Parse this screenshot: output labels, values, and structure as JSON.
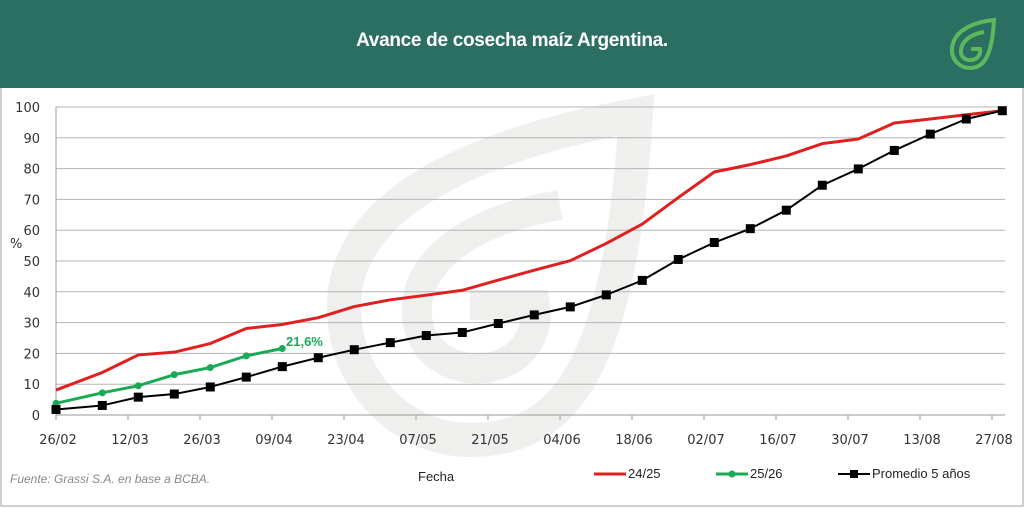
{
  "header": {
    "title": "Avance de cosecha maíz Argentina."
  },
  "source": "Fuente: Grassi S.A. en base a BCBA.",
  "chart_data": {
    "type": "line",
    "title": "Avance de cosecha maíz Argentina.",
    "xlabel": "Fecha",
    "ylabel": "%",
    "ylim": [
      0,
      100
    ],
    "yticks": [
      0,
      10,
      20,
      30,
      40,
      50,
      60,
      70,
      80,
      90,
      100
    ],
    "xtick_days": [
      0,
      14,
      28,
      42,
      56,
      70,
      84,
      98,
      112,
      126,
      140,
      154,
      168,
      182
    ],
    "xtick_labels": [
      "26/02",
      "12/03",
      "26/03",
      "09/04",
      "23/04",
      "07/05",
      "21/05",
      "04/06",
      "18/06",
      "02/07",
      "16/07",
      "30/07",
      "13/08",
      "27/08"
    ],
    "x_days": [
      0,
      9,
      16,
      23,
      30,
      37,
      44,
      51,
      58,
      65,
      72,
      79,
      86,
      93,
      100,
      107,
      114,
      121,
      128,
      135,
      142,
      149,
      156,
      163,
      170,
      177,
      184
    ],
    "grid": true,
    "legend": "bottom-right",
    "series": [
      {
        "name": "24/25",
        "color": "#e02020",
        "marker": "none",
        "values": [
          8.1,
          13.8,
          19.5,
          20.4,
          23.2,
          28.1,
          29.4,
          31.6,
          35.2,
          37.4,
          38.9,
          40.5,
          43.8,
          47.0,
          50.1,
          55.7,
          62.0,
          70.6,
          78.9,
          81.3,
          84.1,
          88.1,
          89.6,
          94.8,
          96.1,
          97.5,
          98.8
        ]
      },
      {
        "name": "25/26",
        "color": "#1aaa55",
        "marker": "circle",
        "values": [
          3.8,
          7.2,
          9.5,
          13.1,
          15.4,
          19.2,
          21.6
        ]
      },
      {
        "name": "Promedio 5 años",
        "color": "#000000",
        "marker": "square",
        "values": [
          1.8,
          3.1,
          5.8,
          6.8,
          9.1,
          12.3,
          15.7,
          18.6,
          21.2,
          23.5,
          25.8,
          26.8,
          29.7,
          32.5,
          35.1,
          39.0,
          43.7,
          50.5,
          56.0,
          60.5,
          66.5,
          74.6,
          79.9,
          85.9,
          91.2,
          96.1,
          98.8
        ]
      }
    ],
    "annotations": [
      {
        "series": "25/26",
        "text": "21,6%"
      }
    ]
  }
}
